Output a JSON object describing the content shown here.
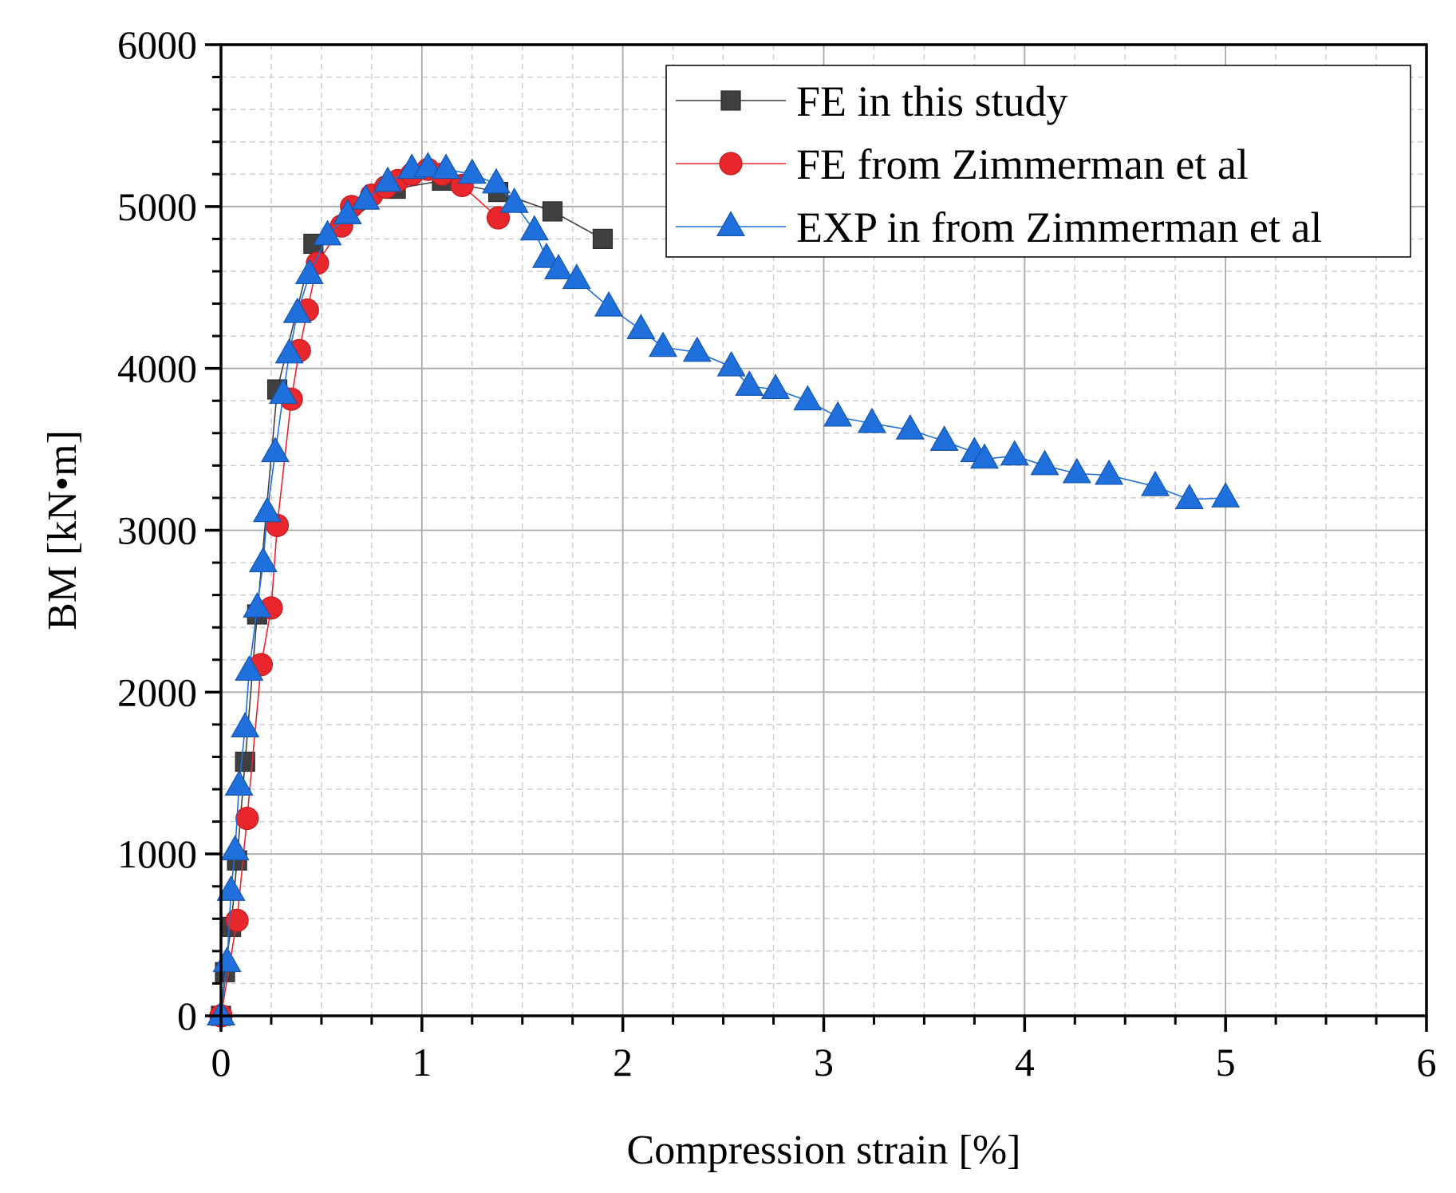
{
  "chart_data": {
    "type": "scatter",
    "xlabel": "Compression strain [%]",
    "ylabel": "BM [kN•m]",
    "xlim": [
      0,
      6
    ],
    "ylim": [
      0,
      6000
    ],
    "xticks": [
      0,
      1,
      2,
      3,
      4,
      5,
      6
    ],
    "yticks": [
      0,
      1000,
      2000,
      3000,
      4000,
      5000,
      6000
    ],
    "xtick_labels": [
      "0",
      "1",
      "2",
      "3",
      "4",
      "5",
      "6"
    ],
    "ytick_labels": [
      "0",
      "1000",
      "2000",
      "3000",
      "4000",
      "5000",
      "6000"
    ],
    "grid": true,
    "legend_position": "top-right",
    "series": [
      {
        "name": "FE in this study",
        "color": "#404040",
        "marker": "square",
        "x": [
          0.0,
          0.02,
          0.05,
          0.08,
          0.12,
          0.18,
          0.28,
          0.46,
          0.87,
          1.1,
          1.38,
          1.65,
          1.9
        ],
        "y": [
          0,
          270,
          550,
          960,
          1570,
          2480,
          3870,
          4770,
          5110,
          5160,
          5090,
          4970,
          4800
        ]
      },
      {
        "name": "FE from Zimmerman et al",
        "color": "#e8262b",
        "marker": "circle",
        "x": [
          0.0,
          0.08,
          0.13,
          0.2,
          0.25,
          0.28,
          0.35,
          0.39,
          0.43,
          0.48,
          0.6,
          0.65,
          0.75,
          0.82,
          0.88,
          0.95,
          1.03,
          1.1,
          1.2,
          1.38
        ],
        "y": [
          0,
          590,
          1220,
          2170,
          2520,
          3030,
          3810,
          4110,
          4360,
          4650,
          4880,
          5000,
          5070,
          5120,
          5160,
          5200,
          5230,
          5200,
          5130,
          4930
        ]
      },
      {
        "name": "EXP in from Zimmerman et al",
        "color": "#1f6fdc",
        "marker": "triangle",
        "x": [
          0.0,
          0.03,
          0.05,
          0.07,
          0.09,
          0.12,
          0.14,
          0.18,
          0.21,
          0.23,
          0.27,
          0.31,
          0.34,
          0.38,
          0.44,
          0.53,
          0.63,
          0.72,
          0.83,
          0.95,
          1.03,
          1.12,
          1.25,
          1.37,
          1.46,
          1.56,
          1.62,
          1.68,
          1.77,
          1.93,
          2.09,
          2.2,
          2.37,
          2.54,
          2.63,
          2.76,
          2.92,
          3.07,
          3.24,
          3.43,
          3.6,
          3.75,
          3.8,
          3.95,
          4.1,
          4.26,
          4.42,
          4.65,
          4.82,
          5.0
        ],
        "y": [
          0,
          330,
          770,
          1020,
          1420,
          1780,
          2130,
          2520,
          2800,
          3110,
          3480,
          3840,
          4090,
          4340,
          4580,
          4820,
          4950,
          5040,
          5150,
          5230,
          5240,
          5230,
          5200,
          5140,
          5020,
          4850,
          4680,
          4610,
          4550,
          4380,
          4240,
          4130,
          4100,
          4010,
          3890,
          3870,
          3800,
          3700,
          3660,
          3620,
          3550,
          3480,
          3440,
          3460,
          3400,
          3350,
          3340,
          3270,
          3190,
          3200
        ]
      }
    ]
  }
}
